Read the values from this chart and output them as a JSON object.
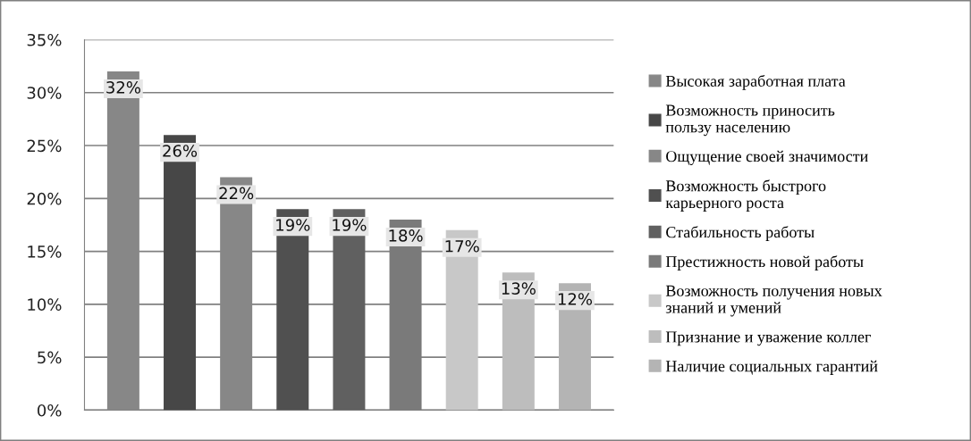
{
  "chart_data": {
    "type": "bar",
    "categories": [
      null
    ],
    "series": [
      {
        "name": "Высокая заработная плата",
        "color": "#878787",
        "values": [
          32
        ],
        "value_labels": [
          "32%"
        ]
      },
      {
        "name": "Возможность приносить\nпользу населению",
        "color": "#474747",
        "values": [
          26
        ],
        "value_labels": [
          "26%"
        ]
      },
      {
        "name": "Ощущение своей значимости",
        "color": "#878787",
        "values": [
          22
        ],
        "value_labels": [
          "22%"
        ]
      },
      {
        "name": "Возможность быстрого\nкарьерного роста",
        "color": "#505050",
        "values": [
          19
        ],
        "value_labels": [
          "19%"
        ]
      },
      {
        "name": "Стабильность работы",
        "color": "#606060",
        "values": [
          19
        ],
        "value_labels": [
          "19%"
        ]
      },
      {
        "name": "Престижность новой работы",
        "color": "#7a7a7a",
        "values": [
          18
        ],
        "value_labels": [
          "18%"
        ]
      },
      {
        "name": "Возможность получения новых\nзнаний и умений",
        "color": "#c8c8c8",
        "values": [
          17
        ],
        "value_labels": [
          "17%"
        ]
      },
      {
        "name": "Признание и уважение коллег",
        "color": "#bdbdbd",
        "values": [
          13
        ],
        "value_labels": [
          "13%"
        ]
      },
      {
        "name": "Наличие социальных гарантий",
        "color": "#b4b4b4",
        "values": [
          12
        ],
        "value_labels": [
          "12%"
        ]
      }
    ],
    "ylim": [
      0,
      35
    ],
    "yticks": [
      {
        "value": 0,
        "label": "0%"
      },
      {
        "value": 5,
        "label": "5%"
      },
      {
        "value": 10,
        "label": "10%"
      },
      {
        "value": 15,
        "label": "15%"
      },
      {
        "value": 20,
        "label": "20%"
      },
      {
        "value": 25,
        "label": "25%"
      },
      {
        "value": 30,
        "label": "30%"
      },
      {
        "value": 35,
        "label": "35%"
      }
    ],
    "grid": "y",
    "legend": "right"
  }
}
